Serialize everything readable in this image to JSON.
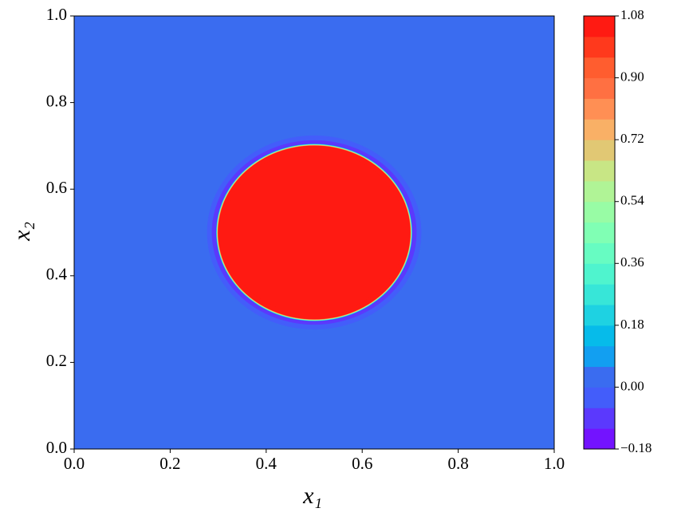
{
  "chart_data": {
    "type": "contourf",
    "xlabel": "x₁",
    "ylabel": "x₂",
    "xlim": [
      0,
      1
    ],
    "ylim": [
      0,
      1
    ],
    "xticks": [
      {
        "value": 0,
        "label": "0.0"
      },
      0.2,
      0.4,
      0.6,
      0.8,
      {
        "value": 1,
        "label": "1.0"
      }
    ],
    "yticks": [
      {
        "value": 0,
        "label": "0.0"
      },
      0.2,
      0.4,
      0.6,
      0.8,
      {
        "value": 1,
        "label": "1.0"
      }
    ],
    "field": {
      "background": 0.01,
      "disk": {
        "center": [
          0.5,
          0.5
        ],
        "radius": 0.2,
        "value": 1.05
      }
    },
    "clim": [
      -0.18,
      1.08
    ],
    "cticks": [
      {
        "value": 1.08,
        "label": "1.08"
      },
      {
        "value": 0.9,
        "label": "0.90"
      },
      {
        "value": 0.72,
        "label": "0.72"
      },
      {
        "value": 0.54,
        "label": "0.54"
      },
      {
        "value": 0.36,
        "label": "0.36"
      },
      {
        "value": 0.18,
        "label": "0.18"
      },
      {
        "value": 0,
        "label": "0.00"
      },
      {
        "value": -0.18,
        "label": "−0.18"
      }
    ],
    "colors": [
      "#7313ff",
      "#5b39fd",
      "#435dfa",
      "#3a6cf0",
      "#129ff1",
      "#06bbea",
      "#1ed2e2",
      "#37e6d8",
      "#4ff4ce",
      "#67fcc2",
      "#80ffb4",
      "#98fca5",
      "#b0f496",
      "#c8e685",
      "#e1c874",
      "#f9b066",
      "#ff8f54",
      "#ff7042",
      "#ff5d2f",
      "#ff391c",
      "#ff1a12"
    ]
  }
}
